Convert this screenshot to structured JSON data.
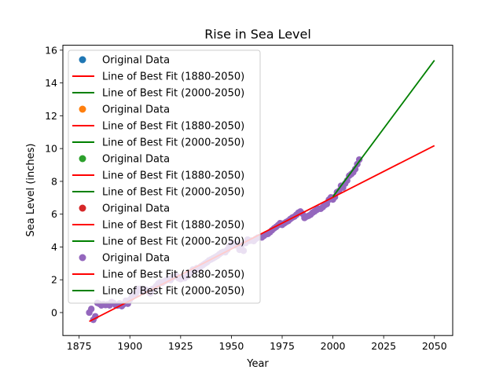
{
  "chart_data": {
    "type": "scatter",
    "title": "Rise in Sea Level",
    "xlabel": "Year",
    "ylabel": "Sea Level (inches)",
    "xlim": [
      1867,
      2059
    ],
    "ylim": [
      -1.4,
      16.3
    ],
    "xticks": [
      "1875",
      "1900",
      "1925",
      "1950",
      "1975",
      "2000",
      "2025",
      "2050"
    ],
    "yticks": [
      "0",
      "2",
      "4",
      "6",
      "8",
      "10",
      "12",
      "14",
      "16"
    ],
    "grid": false,
    "legend_placement": "upper-left",
    "colors": {
      "c1": "#1f77b4",
      "c2": "#ff7f0e",
      "c3": "#2ca02c",
      "c4": "#d62728",
      "c5": "#9467bd",
      "fit_all": "#ff0000",
      "fit_recent": "#008000"
    },
    "legend": [
      {
        "label": "Original Data",
        "kind": "marker",
        "color": "#1f77b4"
      },
      {
        "label": "Line of Best Fit (1880-2050)",
        "kind": "line",
        "color": "#ff0000"
      },
      {
        "label": "Line of Best Fit (2000-2050)",
        "kind": "line",
        "color": "#008000"
      },
      {
        "label": "Original Data",
        "kind": "marker",
        "color": "#ff7f0e"
      },
      {
        "label": "Line of Best Fit (1880-2050)",
        "kind": "line",
        "color": "#ff0000"
      },
      {
        "label": "Line of Best Fit (2000-2050)",
        "kind": "line",
        "color": "#008000"
      },
      {
        "label": "Original Data",
        "kind": "marker",
        "color": "#2ca02c"
      },
      {
        "label": "Line of Best Fit (1880-2050)",
        "kind": "line",
        "color": "#ff0000"
      },
      {
        "label": "Line of Best Fit (2000-2050)",
        "kind": "line",
        "color": "#008000"
      },
      {
        "label": "Original Data",
        "kind": "marker",
        "color": "#d62728"
      },
      {
        "label": "Line of Best Fit (1880-2050)",
        "kind": "line",
        "color": "#ff0000"
      },
      {
        "label": "Line of Best Fit (2000-2050)",
        "kind": "line",
        "color": "#008000"
      },
      {
        "label": "Original Data",
        "kind": "marker",
        "color": "#9467bd"
      },
      {
        "label": "Line of Best Fit (1880-2050)",
        "kind": "line",
        "color": "#ff0000"
      },
      {
        "label": "Line of Best Fit (2000-2050)",
        "kind": "line",
        "color": "#008000"
      }
    ],
    "series": [
      {
        "kind": "scatter",
        "color": "#9467bd",
        "x": [
          1880,
          1881,
          1882,
          1883,
          1884,
          1885,
          1886,
          1887,
          1888,
          1889,
          1890,
          1891,
          1892,
          1893,
          1894,
          1895,
          1896,
          1897,
          1898,
          1899,
          1900,
          1901,
          1902,
          1903,
          1904,
          1905,
          1906,
          1907,
          1908,
          1909,
          1910,
          1911,
          1912,
          1913,
          1914,
          1915,
          1916,
          1917,
          1918,
          1919,
          1920,
          1921,
          1922,
          1923,
          1924,
          1925,
          1926,
          1927,
          1928,
          1929,
          1930,
          1931,
          1932,
          1933,
          1934,
          1935,
          1936,
          1937,
          1938,
          1939,
          1940,
          1941,
          1942,
          1943,
          1944,
          1945,
          1946,
          1947,
          1948,
          1949,
          1950,
          1951,
          1952,
          1953,
          1954,
          1955,
          1956,
          1957,
          1958,
          1959,
          1960,
          1961,
          1962,
          1963,
          1964,
          1965,
          1966,
          1967,
          1968,
          1969,
          1970,
          1971,
          1972,
          1973,
          1974,
          1975,
          1976,
          1977,
          1978,
          1979,
          1980,
          1981,
          1982,
          1983,
          1984,
          1985,
          1986,
          1987,
          1988,
          1989,
          1990,
          1991,
          1992,
          1993,
          1994,
          1995,
          1996,
          1997,
          1998,
          1999,
          2000,
          2001,
          2002,
          2003,
          2004,
          2005,
          2006,
          2007,
          2008,
          2009,
          2010,
          2011,
          2012,
          2013
        ],
        "y": [
          0.0,
          0.22,
          -0.44,
          -0.23,
          0.59,
          0.53,
          0.44,
          0.51,
          0.46,
          0.5,
          0.44,
          0.64,
          0.58,
          0.46,
          0.43,
          0.56,
          0.39,
          0.52,
          0.72,
          0.54,
          0.78,
          0.94,
          1.06,
          1.17,
          1.44,
          1.44,
          1.29,
          1.42,
          1.38,
          1.29,
          1.17,
          1.43,
          1.48,
          1.62,
          1.77,
          1.85,
          1.81,
          1.9,
          1.97,
          2.05,
          1.98,
          2.14,
          2.21,
          2.24,
          2.09,
          2.04,
          2.09,
          2.1,
          2.2,
          2.32,
          2.44,
          2.62,
          2.57,
          2.71,
          2.64,
          2.82,
          2.9,
          2.99,
          3.07,
          3.18,
          3.24,
          3.31,
          3.38,
          3.45,
          3.55,
          3.64,
          3.7,
          3.68,
          3.83,
          4.02,
          4.19,
          4.21,
          4.1,
          4.15,
          3.83,
          4.13,
          3.77,
          4.24,
          4.45,
          4.38,
          4.39,
          4.36,
          4.49,
          4.57,
          4.6,
          4.58,
          4.68,
          4.77,
          4.8,
          4.9,
          5.02,
          5.13,
          5.22,
          5.33,
          5.45,
          5.35,
          5.44,
          5.52,
          5.59,
          5.7,
          5.79,
          5.85,
          5.96,
          6.09,
          6.16,
          6.03,
          5.77,
          5.85,
          5.9,
          5.97,
          6.09,
          6.17,
          6.26,
          6.33,
          6.33,
          6.43,
          6.55,
          6.62,
          6.88,
          7.02,
          6.89,
          7.05,
          7.34,
          7.41,
          7.73,
          7.62,
          7.86,
          8.05,
          8.34,
          8.44,
          8.55,
          8.75,
          9.05,
          9.33
        ]
      },
      {
        "kind": "line",
        "name": "Line of Best Fit (1880-2050)",
        "color": "#ff0000",
        "x": [
          1880,
          2050
        ],
        "y": [
          -0.54,
          10.18
        ]
      },
      {
        "kind": "line",
        "name": "Line of Best Fit (2000-2050)",
        "color": "#008000",
        "x": [
          2000,
          2050
        ],
        "y": [
          7.06,
          15.38
        ]
      }
    ]
  }
}
